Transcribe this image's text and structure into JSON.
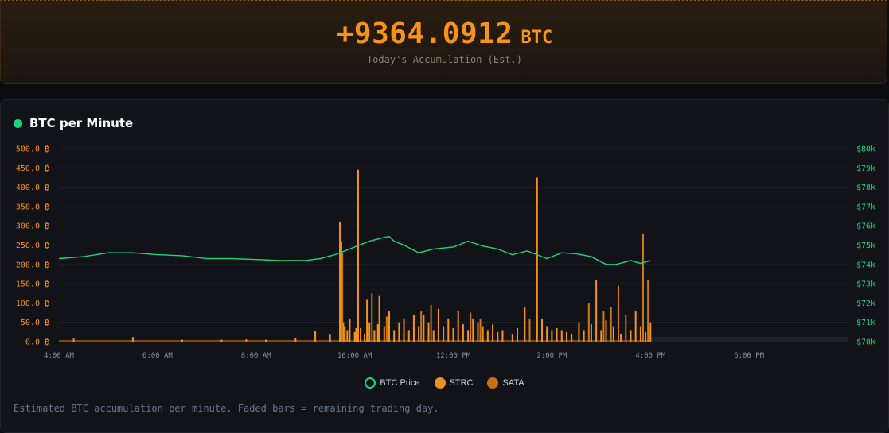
{
  "banner": {
    "amount": "+9364.0912",
    "unit": "BTC",
    "caption": "Today's Accumulation (Est.)"
  },
  "panel": {
    "title": "BTC per Minute",
    "footnote": "Estimated BTC accumulation per minute. Faded bars = remaining trading day."
  },
  "colors": {
    "accent": "#f7931a",
    "price": "#19d67a",
    "sata": "#d97a0a"
  },
  "chart_data": {
    "type": "bar",
    "x_unit": "time of day",
    "y_left_ticks": [
      "0.0 ₿",
      "50.0 ₿",
      "100.0 ₿",
      "150.0 ₿",
      "200.0 ₿",
      "250.0 ₿",
      "300.0 ₿",
      "350.0 ₿",
      "400.0 ₿",
      "450.0 ₿",
      "500.0 ₿"
    ],
    "y_left_lim": [
      0,
      500
    ],
    "y_right_ticks": [
      "$70k",
      "$71k",
      "$72k",
      "$73k",
      "$74k",
      "$75k",
      "$76k",
      "$77k",
      "$78k",
      "$79k",
      "$80k"
    ],
    "y_right_lim": [
      70000,
      80000
    ],
    "x_ticks": [
      "4:00 AM",
      "6:00 AM",
      "8:00 AM",
      "10:00 AM",
      "12:00 PM",
      "2:00 PM",
      "4:00 PM",
      "6:00 PM"
    ],
    "x_range_hours": [
      4,
      20
    ],
    "grid": true,
    "legend_position": "bottom-center",
    "faded_region_hours": [
      16,
      20
    ],
    "legend": [
      {
        "label": "BTC Price",
        "kind": "ring",
        "color": "#19d67a"
      },
      {
        "label": "STRC",
        "kind": "dot",
        "color": "#e8902a"
      },
      {
        "label": "SATA",
        "kind": "dot",
        "color": "#c9700e"
      }
    ],
    "series": [
      {
        "name": "STRC",
        "color": "#f7931a",
        "points": [
          [
            4.3,
            8
          ],
          [
            5.5,
            12
          ],
          [
            6.5,
            5
          ],
          [
            7.3,
            5
          ],
          [
            7.8,
            6
          ],
          [
            8.2,
            5
          ],
          [
            8.8,
            9
          ],
          [
            9.2,
            28
          ],
          [
            9.5,
            18
          ],
          [
            9.7,
            310
          ],
          [
            9.73,
            260
          ],
          [
            9.77,
            50
          ],
          [
            9.8,
            40
          ],
          [
            9.85,
            30
          ],
          [
            9.9,
            60
          ],
          [
            10.0,
            25
          ],
          [
            10.03,
            35
          ],
          [
            10.07,
            445
          ],
          [
            10.12,
            35
          ],
          [
            10.2,
            20
          ],
          [
            10.25,
            110
          ],
          [
            10.3,
            50
          ],
          [
            10.4,
            30
          ],
          [
            10.47,
            45
          ],
          [
            10.5,
            120
          ],
          [
            10.6,
            40
          ],
          [
            10.7,
            80
          ],
          [
            10.8,
            30
          ],
          [
            10.9,
            50
          ],
          [
            11.0,
            60
          ],
          [
            11.1,
            30
          ],
          [
            11.2,
            70
          ],
          [
            11.3,
            40
          ],
          [
            11.4,
            70
          ],
          [
            11.5,
            50
          ],
          [
            11.6,
            30
          ],
          [
            11.7,
            85
          ],
          [
            11.8,
            40
          ],
          [
            11.9,
            60
          ],
          [
            12.0,
            35
          ],
          [
            12.1,
            80
          ],
          [
            12.2,
            45
          ],
          [
            12.3,
            30
          ],
          [
            12.4,
            60
          ],
          [
            12.5,
            50
          ],
          [
            12.6,
            40
          ],
          [
            12.7,
            30
          ],
          [
            12.8,
            45
          ],
          [
            12.9,
            25
          ],
          [
            13.0,
            30
          ],
          [
            13.2,
            20
          ],
          [
            13.3,
            35
          ],
          [
            13.45,
            90
          ],
          [
            13.55,
            25
          ],
          [
            13.7,
            425
          ],
          [
            13.8,
            60
          ],
          [
            13.9,
            40
          ],
          [
            14.0,
            30
          ],
          [
            14.1,
            35
          ],
          [
            14.2,
            30
          ],
          [
            14.3,
            25
          ],
          [
            14.4,
            20
          ],
          [
            14.55,
            50
          ],
          [
            14.65,
            30
          ],
          [
            14.8,
            45
          ],
          [
            14.9,
            160
          ],
          [
            15.0,
            30
          ],
          [
            15.1,
            55
          ],
          [
            15.25,
            40
          ],
          [
            15.4,
            20
          ],
          [
            15.6,
            30
          ],
          [
            15.7,
            80
          ],
          [
            15.8,
            40
          ],
          [
            15.9,
            25
          ],
          [
            16.0,
            50
          ]
        ]
      },
      {
        "name": "SATA",
        "color": "#d27a12",
        "points": [
          [
            9.75,
            230
          ],
          [
            10.35,
            125
          ],
          [
            10.65,
            65
          ],
          [
            11.35,
            80
          ],
          [
            11.55,
            95
          ],
          [
            12.35,
            75
          ],
          [
            12.55,
            60
          ],
          [
            13.55,
            60
          ],
          [
            14.75,
            100
          ],
          [
            15.05,
            80
          ],
          [
            15.2,
            90
          ],
          [
            15.35,
            145
          ],
          [
            15.5,
            70
          ],
          [
            15.85,
            280
          ],
          [
            15.95,
            160
          ]
        ]
      },
      {
        "name": "BTC Price",
        "color": "#19d67a",
        "points": [
          [
            4.0,
            74.3
          ],
          [
            4.5,
            74.4
          ],
          [
            5.0,
            74.6
          ],
          [
            5.5,
            74.6
          ],
          [
            6.0,
            74.5
          ],
          [
            6.5,
            74.45
          ],
          [
            7.0,
            74.3
          ],
          [
            7.5,
            74.3
          ],
          [
            8.0,
            74.25
          ],
          [
            8.5,
            74.2
          ],
          [
            9.0,
            74.2
          ],
          [
            9.3,
            74.3
          ],
          [
            9.6,
            74.5
          ],
          [
            9.8,
            74.7
          ],
          [
            10.0,
            74.9
          ],
          [
            10.3,
            75.2
          ],
          [
            10.6,
            75.4
          ],
          [
            10.7,
            75.45
          ],
          [
            10.8,
            75.2
          ],
          [
            11.0,
            75.0
          ],
          [
            11.3,
            74.6
          ],
          [
            11.6,
            74.8
          ],
          [
            12.0,
            74.9
          ],
          [
            12.3,
            75.2
          ],
          [
            12.6,
            74.95
          ],
          [
            12.9,
            74.8
          ],
          [
            13.2,
            74.5
          ],
          [
            13.5,
            74.7
          ],
          [
            13.9,
            74.3
          ],
          [
            14.2,
            74.6
          ],
          [
            14.5,
            74.55
          ],
          [
            14.8,
            74.4
          ],
          [
            15.1,
            74.0
          ],
          [
            15.3,
            74.0
          ],
          [
            15.6,
            74.2
          ],
          [
            15.8,
            74.05
          ],
          [
            16.0,
            74.2
          ]
        ]
      }
    ]
  }
}
